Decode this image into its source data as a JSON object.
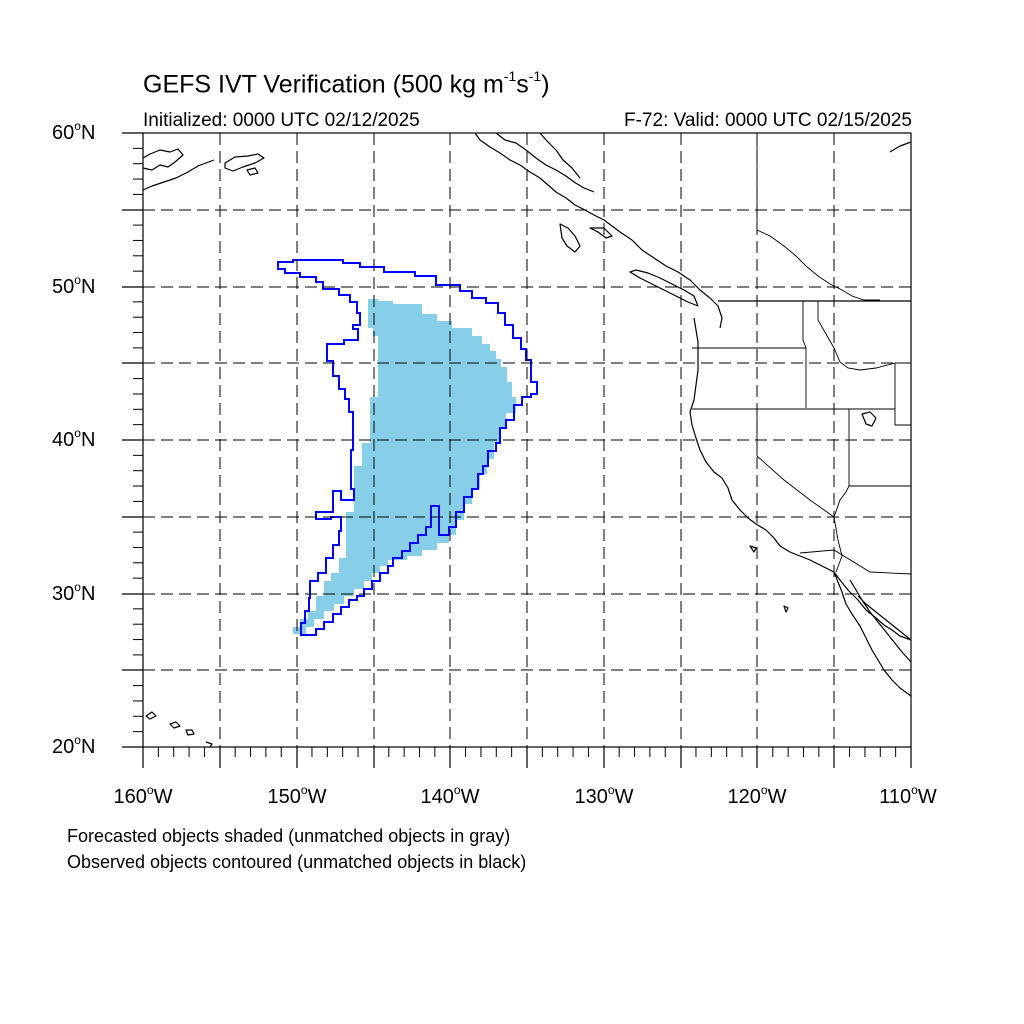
{
  "title": {
    "main": "GEFS IVT Verification (500 kg m",
    "exp1": "-1",
    "mid": "s",
    "exp2": "-1",
    "end": ")"
  },
  "subtitle_left": "Initialized: 0000 UTC 02/12/2025",
  "subtitle_right": "F-72: Valid: 0000 UTC 02/15/2025",
  "lat_labels": [
    {
      "deg": "60",
      "hemi": "N"
    },
    {
      "deg": "50",
      "hemi": "N"
    },
    {
      "deg": "40",
      "hemi": "N"
    },
    {
      "deg": "30",
      "hemi": "N"
    },
    {
      "deg": "20",
      "hemi": "N"
    }
  ],
  "lon_labels": [
    {
      "deg": "160",
      "hemi": "W"
    },
    {
      "deg": "150",
      "hemi": "W"
    },
    {
      "deg": "140",
      "hemi": "W"
    },
    {
      "deg": "130",
      "hemi": "W"
    },
    {
      "deg": "120",
      "hemi": "W"
    },
    {
      "deg": "110",
      "hemi": "W"
    }
  ],
  "footnote_1": "Forecasted objects shaded (unmatched objects in gray)",
  "footnote_2": "Observed objects contoured (unmatched objects in black)",
  "colors": {
    "forecast_fill": "#87cfe8",
    "observed_contour": "#0000ff",
    "coastline": "#000000",
    "grid": "#000000"
  },
  "map_extent": {
    "lon_min": -160,
    "lon_max": -110,
    "lat_min": 20,
    "lat_max": 60
  },
  "grid_step_deg": 5
}
